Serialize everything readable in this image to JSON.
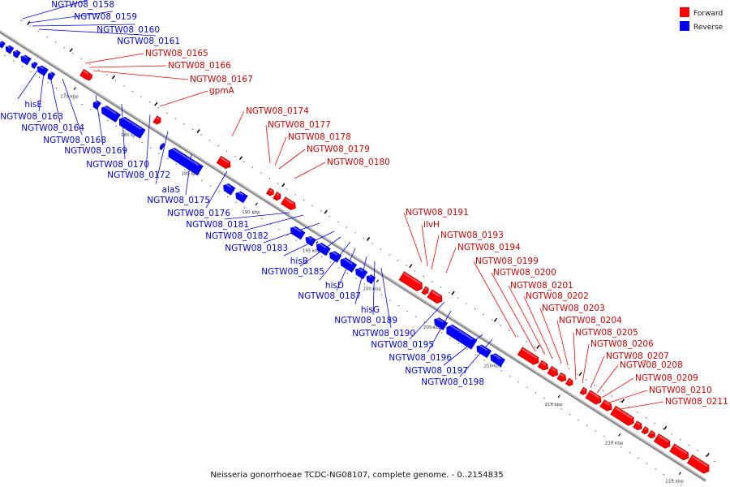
{
  "caption": "Neisseria gonorrhoeae TCDC-NG08107, complete genome. - 0..2154835",
  "legend": [
    {
      "label": "Forward",
      "color": "#ff0000"
    },
    {
      "label": "Reverse",
      "color": "#0000ff"
    }
  ],
  "ticks": [
    "175 kbp",
    "180 kbp",
    "185 kbp",
    "190 kbp",
    "195 kbp",
    "200 kbp",
    "205 kbp",
    "210 kbp",
    "215 kbp",
    "220 kbp",
    "225 kbp"
  ],
  "forward_labels": [
    "NGTW08_0165",
    "NGTW08_0166",
    "NGTW08_0167",
    "gpmA",
    "NGTW08_0174",
    "NGTW08_0177",
    "NGTW08_0178",
    "NGTW08_0179",
    "NGTW08_0180",
    "NGTW08_0191",
    "ilvH",
    "NGTW08_0193",
    "NGTW08_0194",
    "NGTW08_0199",
    "NGTW08_0200",
    "NGTW08_0201",
    "NGTW08_0202",
    "NGTW08_0203",
    "NGTW08_0204",
    "NGTW08_0205",
    "NGTW08_0206",
    "NGTW08_0207",
    "NGTW08_0208",
    "NGTW08_0209",
    "NGTW08_0210",
    "NGTW08_0211"
  ],
  "reverse_labels": [
    "NGTW08_0158",
    "NGTW08_0159",
    "NGTW08_0160",
    "NGTW08_0161",
    "hisE",
    "NGTW08_0163",
    "NGTW08_0164",
    "NGTW08_0168",
    "NGTW08_0169",
    "NGTW08_0170",
    "NGTW08_0172",
    "alaS",
    "NGTW08_0175",
    "NGTW08_0176",
    "NGTW08_0181",
    "NGTW08_0182",
    "NGTW08_0183",
    "hisB",
    "NGTW08_0185",
    "hisD",
    "NGTW08_0187",
    "hisG",
    "NGTW08_0189",
    "NGTW08_0190",
    "NGTW08_0195",
    "NGTW08_0196",
    "NGTW08_0197",
    "NGTW08_0198"
  ]
}
